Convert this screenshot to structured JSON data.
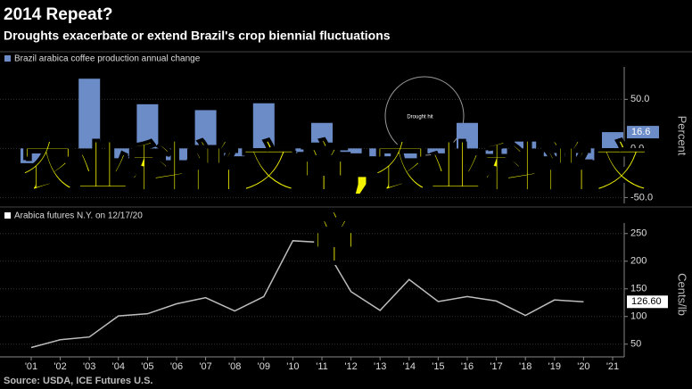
{
  "title": "2014 Repeat?",
  "subtitle": "Droughts exacerbate or extend Brazil's crop biennial fluctuations",
  "source": "Source: USDA, ICE Futures U.S.",
  "overlay_text": "农业科普文章,农业科普文章",
  "chart_data": [
    {
      "type": "bar",
      "legend": "Brazil arabica coffee production annual change",
      "color": "#6b8cc7",
      "axis_label": "Percent",
      "annotation": "Drought hit",
      "values": [
        -15,
        -5,
        71,
        -10,
        45,
        -12,
        39,
        -8,
        46,
        -5,
        26,
        -5,
        -8,
        -10,
        -5,
        26,
        -10,
        7,
        -8,
        -12,
        16.6
      ],
      "value_labels": [
        null,
        null,
        null,
        null,
        null,
        null,
        null,
        null,
        null,
        null,
        null,
        null,
        null,
        null,
        null,
        null,
        null,
        null,
        null,
        null,
        "16.6"
      ],
      "ylim": [
        -56,
        83
      ],
      "yticks": [
        {
          "value": 50,
          "label": "50.0"
        },
        {
          "value": 0,
          "label": "0.0"
        },
        {
          "value": -50,
          "label": "-50.0"
        }
      ]
    },
    {
      "type": "line",
      "legend": "Arabica futures N.Y. on 12/17/20",
      "color": "#bdbdbd",
      "axis_label": "Cents/lb",
      "categories": [
        "'01",
        "'02",
        "'03",
        "'04",
        "'05",
        "'06",
        "'07",
        "'08",
        "'09",
        "'10",
        "'11",
        "'12",
        "'13",
        "'14",
        "'15",
        "'16",
        "'17",
        "'18",
        "'19",
        "'20",
        "'21"
      ],
      "values": [
        44,
        58,
        63,
        101,
        105,
        123,
        134,
        110,
        136,
        237,
        234,
        145,
        111,
        167,
        127,
        136,
        128,
        102,
        130,
        126.6,
        null
      ],
      "value_labels": [
        null,
        null,
        null,
        null,
        null,
        null,
        null,
        null,
        null,
        null,
        null,
        null,
        null,
        null,
        null,
        null,
        null,
        null,
        null,
        "126.60",
        null
      ],
      "ylim": [
        27,
        269
      ],
      "yticks": [
        50,
        100,
        150,
        200,
        250
      ]
    }
  ]
}
